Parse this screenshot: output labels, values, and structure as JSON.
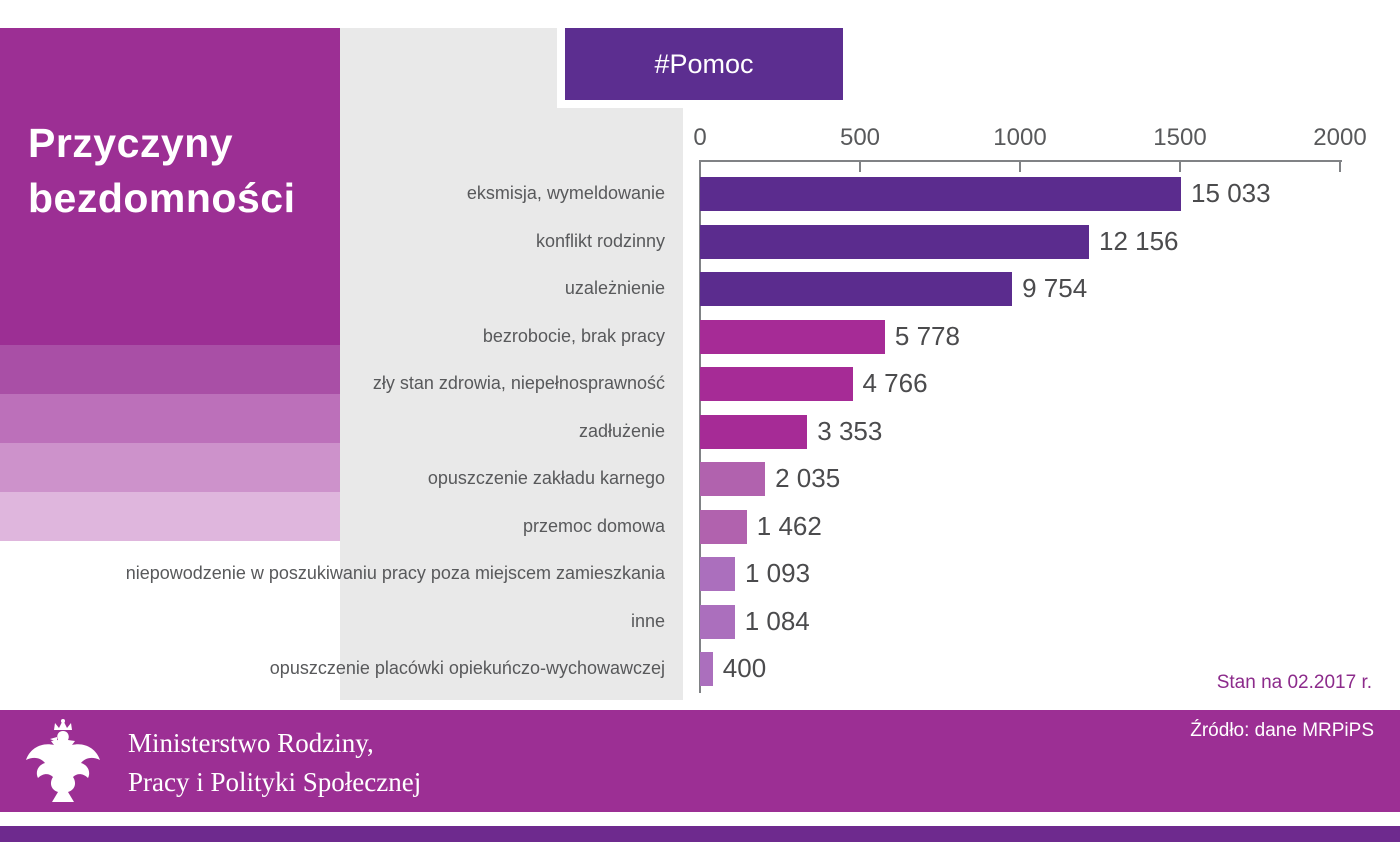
{
  "title": {
    "line1": "Przyczyny",
    "line2": "bezdomności"
  },
  "hashtag": "#Pomoc",
  "status_note": "Stan na 02.2017 r.",
  "chart_data": {
    "type": "bar",
    "orientation": "horizontal",
    "title": "Przyczyny bezdomności",
    "categories": [
      "eksmisja, wymeldowanie",
      "konflikt rodzinny",
      "uzależnienie",
      "bezrobocie, brak pracy",
      "zły stan zdrowia, niepełnosprawność",
      "zadłużenie",
      "opuszczenie zakładu karnego",
      "przemoc domowa",
      "niepowodzenie w poszukiwaniu pracy poza miejscem zamieszkania",
      "inne",
      "opuszczenie placówki opiekuńczo-wychowawczej"
    ],
    "values": [
      15033,
      12156,
      9754,
      5778,
      4766,
      3353,
      2035,
      1462,
      1093,
      1084,
      400
    ],
    "value_labels": [
      "15 033",
      "12 156",
      "9 754",
      "5 778",
      "4 766",
      "3 353",
      "2 035",
      "1 462",
      "1 093",
      "1 084",
      "400"
    ],
    "bar_colors": [
      "#5b2c8e",
      "#5b2c8e",
      "#5b2c8e",
      "#a62b96",
      "#a62b96",
      "#a62b96",
      "#b162ae",
      "#b162ae",
      "#ab6fbd",
      "#ab6fbd",
      "#ab6fbd"
    ],
    "axis_ticks": [
      "0",
      "500",
      "1000",
      "1500",
      "2000"
    ],
    "axis_max": 2000,
    "plot_scale_divisor": 10,
    "legend": false,
    "grid": false
  },
  "footer": {
    "ministry_line1": "Ministerstwo Rodziny,",
    "ministry_line2": "Pracy i Polityki Społecznej",
    "source": "Źródło: dane MRPiPS"
  },
  "colors": {
    "left_panel": "#9c2f94",
    "hashtag_box": "#5c2e90",
    "footer": "#9c2f94",
    "bottom_strip": "#6e2a8e",
    "gray_bg": "#e9e9e9",
    "axis": "#808285",
    "text_gray": "#58595b",
    "note_purple": "#8c2b8b",
    "stripes": [
      "#a94fa6",
      "#bc70ba",
      "#cd92cb",
      "#dfb6dd"
    ]
  }
}
